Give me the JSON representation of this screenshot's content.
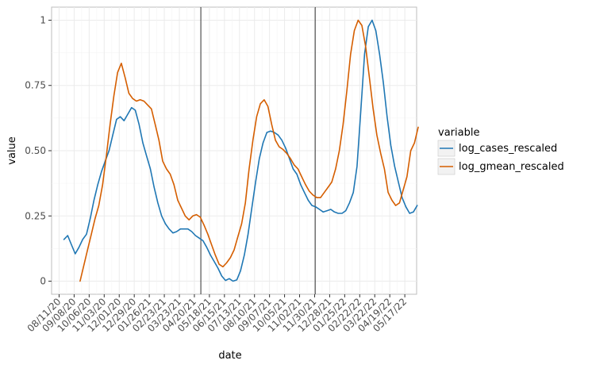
{
  "chart_data": {
    "type": "line",
    "xlabel": "date",
    "ylabel": "value",
    "x_ticks": [
      "08/11/20",
      "09/08/20",
      "10/06/20",
      "11/03/20",
      "12/01/20",
      "12/29/20",
      "01/26/21",
      "02/23/21",
      "03/23/21",
      "04/20/21",
      "05/18/21",
      "06/15/21",
      "07/13/21",
      "08/10/21",
      "09/07/21",
      "10/05/21",
      "11/02/21",
      "11/30/21",
      "12/28/21",
      "01/25/22",
      "02/22/22",
      "03/22/22",
      "04/19/22",
      "05/17/22"
    ],
    "xlim": [
      "2020-07-28",
      "2022-06-08"
    ],
    "y_ticks": [
      0,
      0.25,
      0.5,
      0.75,
      1
    ],
    "y_tick_labels": [
      "0",
      "0.25",
      "0.50",
      "0.75",
      "1"
    ],
    "ylim": [
      -0.05,
      1.05
    ],
    "grid": true,
    "vlines": [
      "2021-05-02",
      "2021-12-01"
    ],
    "legend": {
      "title": "variable",
      "position": "right",
      "items": [
        "log_cases_rescaled",
        "log_gmean_rescaled"
      ]
    },
    "series": [
      {
        "name": "log_cases_rescaled",
        "color": "#1f77b4",
        "points": [
          [
            "2020-08-20",
            0.16
          ],
          [
            "2020-08-27",
            0.175
          ],
          [
            "2020-09-03",
            0.14
          ],
          [
            "2020-09-10",
            0.105
          ],
          [
            "2020-09-17",
            0.13
          ],
          [
            "2020-09-24",
            0.16
          ],
          [
            "2020-10-01",
            0.18
          ],
          [
            "2020-10-08",
            0.24
          ],
          [
            "2020-10-15",
            0.31
          ],
          [
            "2020-10-22",
            0.37
          ],
          [
            "2020-10-29",
            0.42
          ],
          [
            "2020-11-05",
            0.46
          ],
          [
            "2020-11-12",
            0.5
          ],
          [
            "2020-11-19",
            0.56
          ],
          [
            "2020-11-26",
            0.62
          ],
          [
            "2020-12-03",
            0.63
          ],
          [
            "2020-12-10",
            0.615
          ],
          [
            "2020-12-17",
            0.64
          ],
          [
            "2020-12-24",
            0.665
          ],
          [
            "2020-12-31",
            0.655
          ],
          [
            "2021-01-07",
            0.6
          ],
          [
            "2021-01-14",
            0.53
          ],
          [
            "2021-01-21",
            0.48
          ],
          [
            "2021-01-28",
            0.43
          ],
          [
            "2021-02-04",
            0.36
          ],
          [
            "2021-02-11",
            0.3
          ],
          [
            "2021-02-18",
            0.25
          ],
          [
            "2021-02-25",
            0.22
          ],
          [
            "2021-03-04",
            0.2
          ],
          [
            "2021-03-11",
            0.185
          ],
          [
            "2021-03-18",
            0.19
          ],
          [
            "2021-03-25",
            0.2
          ],
          [
            "2021-04-01",
            0.2
          ],
          [
            "2021-04-08",
            0.2
          ],
          [
            "2021-04-15",
            0.19
          ],
          [
            "2021-04-22",
            0.175
          ],
          [
            "2021-04-29",
            0.165
          ],
          [
            "2021-05-06",
            0.155
          ],
          [
            "2021-05-13",
            0.13
          ],
          [
            "2021-05-20",
            0.1
          ],
          [
            "2021-05-27",
            0.075
          ],
          [
            "2021-06-03",
            0.05
          ],
          [
            "2021-06-10",
            0.02
          ],
          [
            "2021-06-17",
            0.003
          ],
          [
            "2021-06-24",
            0.01
          ],
          [
            "2021-07-01",
            0.0
          ],
          [
            "2021-07-08",
            0.005
          ],
          [
            "2021-07-15",
            0.04
          ],
          [
            "2021-07-22",
            0.1
          ],
          [
            "2021-07-29",
            0.18
          ],
          [
            "2021-08-05",
            0.28
          ],
          [
            "2021-08-12",
            0.38
          ],
          [
            "2021-08-19",
            0.47
          ],
          [
            "2021-08-26",
            0.53
          ],
          [
            "2021-09-02",
            0.57
          ],
          [
            "2021-09-09",
            0.575
          ],
          [
            "2021-09-16",
            0.57
          ],
          [
            "2021-09-23",
            0.56
          ],
          [
            "2021-09-30",
            0.54
          ],
          [
            "2021-10-07",
            0.51
          ],
          [
            "2021-10-14",
            0.47
          ],
          [
            "2021-10-21",
            0.43
          ],
          [
            "2021-10-28",
            0.41
          ],
          [
            "2021-11-04",
            0.37
          ],
          [
            "2021-11-11",
            0.34
          ],
          [
            "2021-11-18",
            0.31
          ],
          [
            "2021-11-25",
            0.29
          ],
          [
            "2021-12-02",
            0.285
          ],
          [
            "2021-12-09",
            0.275
          ],
          [
            "2021-12-16",
            0.265
          ],
          [
            "2021-12-23",
            0.27
          ],
          [
            "2021-12-30",
            0.275
          ],
          [
            "2022-01-06",
            0.265
          ],
          [
            "2022-01-13",
            0.26
          ],
          [
            "2022-01-20",
            0.26
          ],
          [
            "2022-01-27",
            0.27
          ],
          [
            "2022-02-03",
            0.3
          ],
          [
            "2022-02-10",
            0.34
          ],
          [
            "2022-02-17",
            0.44
          ],
          [
            "2022-02-24",
            0.65
          ],
          [
            "2022-03-03",
            0.87
          ],
          [
            "2022-03-10",
            0.975
          ],
          [
            "2022-03-17",
            1.0
          ],
          [
            "2022-03-24",
            0.96
          ],
          [
            "2022-03-31",
            0.87
          ],
          [
            "2022-04-07",
            0.76
          ],
          [
            "2022-04-14",
            0.63
          ],
          [
            "2022-04-21",
            0.52
          ],
          [
            "2022-04-28",
            0.44
          ],
          [
            "2022-05-05",
            0.38
          ],
          [
            "2022-05-12",
            0.32
          ],
          [
            "2022-05-19",
            0.285
          ],
          [
            "2022-05-26",
            0.26
          ],
          [
            "2022-06-02",
            0.265
          ],
          [
            "2022-06-09",
            0.29
          ]
        ]
      },
      {
        "name": "log_gmean_rescaled",
        "color": "#d55e00",
        "points": [
          [
            "2020-09-19",
            0.0
          ],
          [
            "2020-09-26",
            0.06
          ],
          [
            "2020-10-03",
            0.12
          ],
          [
            "2020-10-10",
            0.18
          ],
          [
            "2020-10-17",
            0.24
          ],
          [
            "2020-10-24",
            0.29
          ],
          [
            "2020-10-31",
            0.37
          ],
          [
            "2020-11-07",
            0.48
          ],
          [
            "2020-11-14",
            0.6
          ],
          [
            "2020-11-21",
            0.71
          ],
          [
            "2020-11-28",
            0.8
          ],
          [
            "2020-12-05",
            0.835
          ],
          [
            "2020-12-12",
            0.78
          ],
          [
            "2020-12-19",
            0.72
          ],
          [
            "2020-12-26",
            0.7
          ],
          [
            "2021-01-02",
            0.69
          ],
          [
            "2021-01-09",
            0.695
          ],
          [
            "2021-01-16",
            0.69
          ],
          [
            "2021-01-23",
            0.675
          ],
          [
            "2021-01-30",
            0.66
          ],
          [
            "2021-02-06",
            0.6
          ],
          [
            "2021-02-13",
            0.54
          ],
          [
            "2021-02-20",
            0.46
          ],
          [
            "2021-02-27",
            0.43
          ],
          [
            "2021-03-06",
            0.41
          ],
          [
            "2021-03-13",
            0.37
          ],
          [
            "2021-03-20",
            0.31
          ],
          [
            "2021-03-27",
            0.28
          ],
          [
            "2021-04-03",
            0.25
          ],
          [
            "2021-04-10",
            0.235
          ],
          [
            "2021-04-17",
            0.25
          ],
          [
            "2021-04-24",
            0.255
          ],
          [
            "2021-05-01",
            0.245
          ],
          [
            "2021-05-08",
            0.215
          ],
          [
            "2021-05-15",
            0.18
          ],
          [
            "2021-05-22",
            0.14
          ],
          [
            "2021-05-29",
            0.1
          ],
          [
            "2021-06-05",
            0.065
          ],
          [
            "2021-06-12",
            0.055
          ],
          [
            "2021-06-19",
            0.07
          ],
          [
            "2021-06-26",
            0.09
          ],
          [
            "2021-07-03",
            0.12
          ],
          [
            "2021-07-10",
            0.17
          ],
          [
            "2021-07-17",
            0.22
          ],
          [
            "2021-07-24",
            0.3
          ],
          [
            "2021-07-31",
            0.43
          ],
          [
            "2021-08-07",
            0.54
          ],
          [
            "2021-08-14",
            0.63
          ],
          [
            "2021-08-21",
            0.68
          ],
          [
            "2021-08-28",
            0.695
          ],
          [
            "2021-09-04",
            0.67
          ],
          [
            "2021-09-11",
            0.6
          ],
          [
            "2021-09-18",
            0.54
          ],
          [
            "2021-09-25",
            0.515
          ],
          [
            "2021-10-02",
            0.505
          ],
          [
            "2021-10-09",
            0.49
          ],
          [
            "2021-10-16",
            0.47
          ],
          [
            "2021-10-23",
            0.445
          ],
          [
            "2021-10-30",
            0.43
          ],
          [
            "2021-11-06",
            0.4
          ],
          [
            "2021-11-13",
            0.37
          ],
          [
            "2021-11-20",
            0.345
          ],
          [
            "2021-11-27",
            0.33
          ],
          [
            "2021-12-04",
            0.32
          ],
          [
            "2021-12-11",
            0.32
          ],
          [
            "2021-12-18",
            0.34
          ],
          [
            "2021-12-25",
            0.36
          ],
          [
            "2022-01-01",
            0.38
          ],
          [
            "2022-01-08",
            0.43
          ],
          [
            "2022-01-15",
            0.5
          ],
          [
            "2022-01-22",
            0.6
          ],
          [
            "2022-01-29",
            0.73
          ],
          [
            "2022-02-05",
            0.87
          ],
          [
            "2022-02-12",
            0.96
          ],
          [
            "2022-02-19",
            1.0
          ],
          [
            "2022-02-26",
            0.98
          ],
          [
            "2022-03-05",
            0.9
          ],
          [
            "2022-03-12",
            0.78
          ],
          [
            "2022-03-19",
            0.66
          ],
          [
            "2022-03-26",
            0.56
          ],
          [
            "2022-04-02",
            0.49
          ],
          [
            "2022-04-09",
            0.43
          ],
          [
            "2022-04-16",
            0.34
          ],
          [
            "2022-04-23",
            0.31
          ],
          [
            "2022-04-30",
            0.29
          ],
          [
            "2022-05-07",
            0.3
          ],
          [
            "2022-05-14",
            0.35
          ],
          [
            "2022-05-21",
            0.4
          ],
          [
            "2022-05-28",
            0.5
          ],
          [
            "2022-06-04",
            0.53
          ],
          [
            "2022-06-11",
            0.59
          ]
        ]
      }
    ]
  }
}
